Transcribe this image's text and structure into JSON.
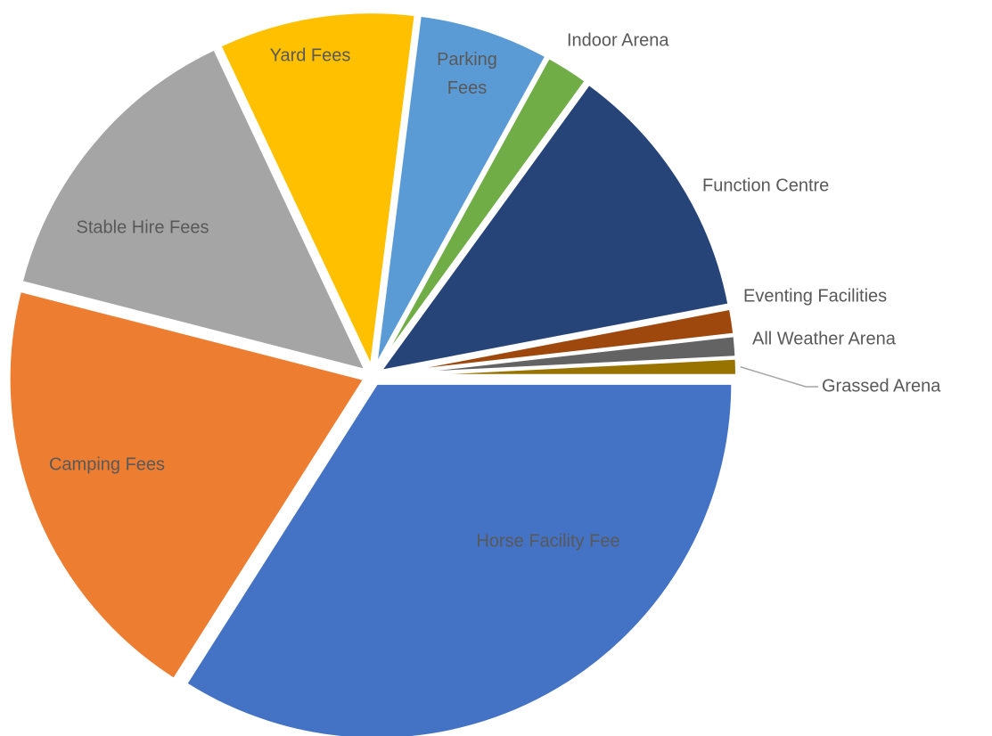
{
  "chart_data": {
    "type": "pie",
    "categories": [
      "Horse Facility Fee",
      "Camping Fees",
      "Stable Hire Fees",
      "Yard Fees",
      "Parking Fees",
      "Indoor Arena",
      "Function Centre",
      "Eventing Facilities",
      "All Weather Arena",
      "Grassed Arena"
    ],
    "values": [
      34,
      20,
      14,
      9,
      6,
      2,
      12,
      1.2,
      1,
      0.8
    ],
    "colors": [
      "#4472c4",
      "#ed7d31",
      "#a5a5a5",
      "#ffc000",
      "#5b9bd5",
      "#70ad47",
      "#264478",
      "#9e480e",
      "#636363",
      "#997300"
    ]
  }
}
